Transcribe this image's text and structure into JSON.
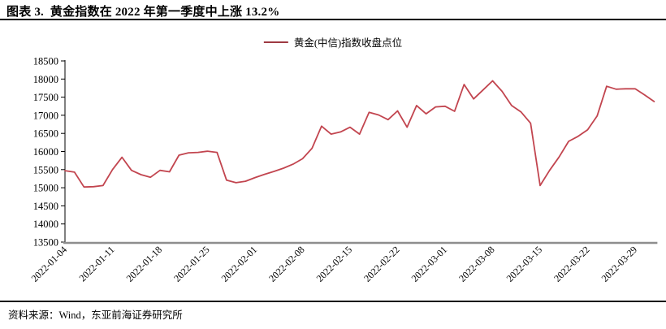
{
  "figure": {
    "title": "图表 3.  黄金指数在 2022 年第一季度中上涨 13.2%",
    "source": "资料来源：Wind，东亚前海证券研究所"
  },
  "legend": {
    "label": "黄金(中信)指数收盘点位",
    "swatch_color": "#9e3a42"
  },
  "chart_data": {
    "type": "line",
    "title": "黄金指数在 2022 年第一季度中上涨 13.2%",
    "legend": [
      "黄金(中信)指数收盘点位"
    ],
    "legend_position": "top-center",
    "grid": false,
    "line_color": "#c2454f",
    "axis_color": "#000000",
    "bottom_axis_color": "#8e8e8e",
    "y_axis": {
      "min": 13500,
      "max": 18500,
      "step": 500
    },
    "x_tick_labels": [
      "2022-01-04",
      "2022-01-11",
      "2022-01-18",
      "2022-01-25",
      "2022-02-01",
      "2022-02-08",
      "2022-02-15",
      "2022-02-22",
      "2022-03-01",
      "2022-03-08",
      "2022-03-15",
      "2022-03-22",
      "2022-03-29"
    ],
    "x_tick_every": 5,
    "dates": [
      "2022-01-04",
      "2022-01-05",
      "2022-01-06",
      "2022-01-07",
      "2022-01-10",
      "2022-01-11",
      "2022-01-12",
      "2022-01-13",
      "2022-01-14",
      "2022-01-17",
      "2022-01-18",
      "2022-01-19",
      "2022-01-20",
      "2022-01-21",
      "2022-01-24",
      "2022-01-25",
      "2022-01-26",
      "2022-01-27",
      "2022-01-28",
      "2022-01-31",
      "2022-02-01",
      "2022-02-02",
      "2022-02-03",
      "2022-02-04",
      "2022-02-07",
      "2022-02-08",
      "2022-02-09",
      "2022-02-10",
      "2022-02-11",
      "2022-02-14",
      "2022-02-15",
      "2022-02-16",
      "2022-02-17",
      "2022-02-18",
      "2022-02-21",
      "2022-02-22",
      "2022-02-23",
      "2022-02-24",
      "2022-02-25",
      "2022-02-28",
      "2022-03-01",
      "2022-03-02",
      "2022-03-03",
      "2022-03-04",
      "2022-03-07",
      "2022-03-08",
      "2022-03-09",
      "2022-03-10",
      "2022-03-11",
      "2022-03-14",
      "2022-03-15",
      "2022-03-16",
      "2022-03-17",
      "2022-03-18",
      "2022-03-21",
      "2022-03-22",
      "2022-03-23",
      "2022-03-24",
      "2022-03-25",
      "2022-03-28",
      "2022-03-29",
      "2022-03-30",
      "2022-03-31"
    ],
    "values": [
      15470,
      15430,
      15020,
      15030,
      15060,
      15500,
      15840,
      15480,
      15360,
      15290,
      15480,
      15440,
      15900,
      15965,
      15975,
      16010,
      15975,
      15210,
      15140,
      15180,
      15280,
      15370,
      15450,
      15540,
      15650,
      15800,
      16090,
      16700,
      16480,
      16540,
      16670,
      16480,
      17080,
      17010,
      16880,
      17120,
      16670,
      17270,
      17040,
      17230,
      17250,
      17110,
      17850,
      17450,
      17700,
      17950,
      17660,
      17270,
      17090,
      16780,
      15060,
      15480,
      15850,
      16280,
      16420,
      16600,
      16980,
      17800,
      17720,
      17730,
      17730,
      17560,
      17380
    ]
  }
}
